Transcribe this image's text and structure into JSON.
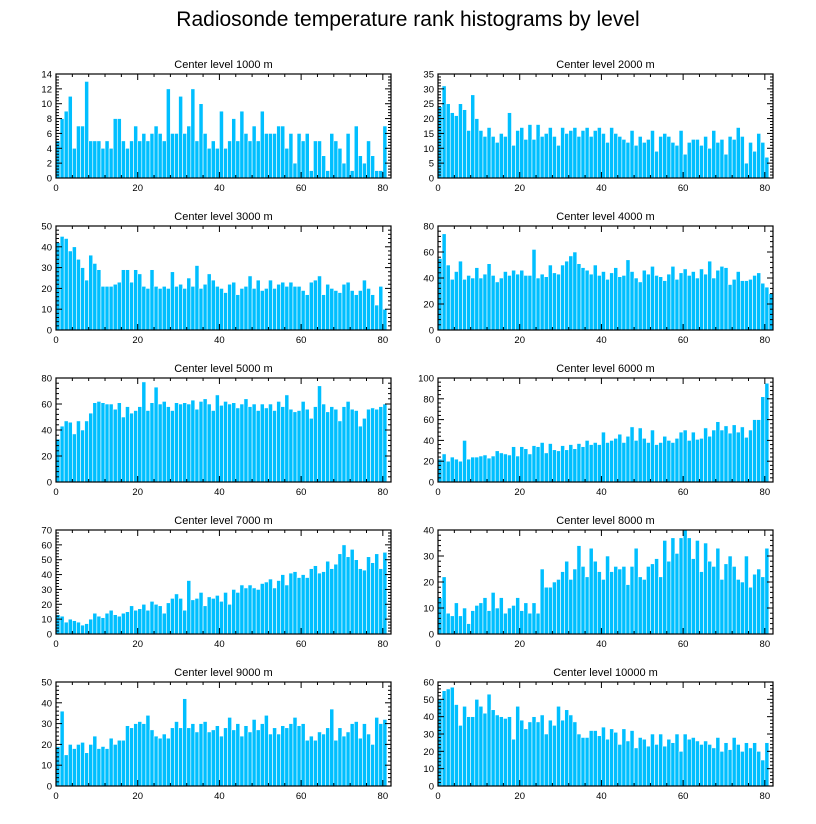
{
  "title": "Radiosonde temperature rank histograms by level",
  "chart_data": [
    {
      "type": "bar",
      "title": "Center level 1000 m",
      "xlim": [
        0,
        82
      ],
      "ylim": [
        0,
        14
      ],
      "xticks": [
        0,
        20,
        40,
        60,
        80
      ],
      "yticks": [
        0,
        2,
        4,
        6,
        8,
        10,
        12,
        14
      ],
      "values": [
        5,
        8,
        9,
        11,
        4,
        7,
        7,
        13,
        5,
        5,
        5,
        4,
        5,
        4,
        8,
        8,
        5,
        4,
        5,
        7,
        5,
        6,
        5,
        6,
        7,
        6,
        5,
        12,
        6,
        6,
        11,
        6,
        7,
        12,
        5,
        10,
        6,
        4,
        5,
        4,
        9,
        4,
        5,
        8,
        5,
        9,
        6,
        5,
        7,
        5,
        9,
        6,
        6,
        6,
        7,
        7,
        4,
        6,
        2,
        6,
        5,
        6,
        1,
        5,
        5,
        3,
        1,
        6,
        5,
        4,
        2,
        6,
        1,
        7,
        3,
        2,
        5,
        3,
        1,
        1,
        7
      ]
    },
    {
      "type": "bar",
      "title": "Center level 2000 m",
      "xlim": [
        0,
        82
      ],
      "ylim": [
        0,
        35
      ],
      "xticks": [
        0,
        20,
        40,
        60,
        80
      ],
      "yticks": [
        0,
        5,
        10,
        15,
        20,
        25,
        30,
        35
      ],
      "values": [
        24,
        31,
        25,
        22,
        21,
        25,
        23,
        16,
        28,
        20,
        16,
        14,
        17,
        14,
        12,
        15,
        14,
        22,
        11,
        16,
        17,
        13,
        18,
        13,
        18,
        14,
        15,
        17,
        14,
        11,
        17,
        15,
        16,
        17,
        14,
        16,
        17,
        14,
        16,
        17,
        15,
        12,
        17,
        15,
        14,
        13,
        12,
        16,
        11,
        14,
        12,
        13,
        16,
        9,
        14,
        15,
        14,
        12,
        11,
        16,
        8,
        12,
        13,
        13,
        11,
        14,
        10,
        16,
        12,
        13,
        8,
        14,
        13,
        17,
        14,
        5,
        12,
        9,
        15,
        12,
        7
      ]
    },
    {
      "type": "bar",
      "title": "Center level 3000 m",
      "xlim": [
        0,
        82
      ],
      "ylim": [
        0,
        50
      ],
      "xticks": [
        0,
        20,
        40,
        60,
        80
      ],
      "yticks": [
        0,
        10,
        20,
        30,
        40,
        50
      ],
      "values": [
        42,
        45,
        44,
        38,
        40,
        34,
        30,
        24,
        36,
        32,
        29,
        21,
        21,
        21,
        22,
        23,
        29,
        29,
        23,
        29,
        27,
        21,
        20,
        29,
        21,
        20,
        21,
        20,
        28,
        21,
        22,
        20,
        25,
        21,
        31,
        20,
        22,
        27,
        24,
        21,
        20,
        18,
        22,
        23,
        17,
        20,
        21,
        26,
        20,
        24,
        19,
        20,
        24,
        20,
        22,
        23,
        21,
        23,
        21,
        21,
        19,
        17,
        23,
        24,
        26,
        17,
        22,
        20,
        19,
        18,
        22,
        23,
        19,
        17,
        19,
        24,
        20,
        17,
        12,
        21,
        10
      ]
    },
    {
      "type": "bar",
      "title": "Center level 4000 m",
      "xlim": [
        0,
        82
      ],
      "ylim": [
        0,
        80
      ],
      "xticks": [
        0,
        20,
        40,
        60,
        80
      ],
      "yticks": [
        0,
        20,
        40,
        60,
        80
      ],
      "values": [
        55,
        74,
        50,
        39,
        45,
        53,
        39,
        42,
        40,
        48,
        40,
        43,
        51,
        42,
        37,
        40,
        45,
        42,
        46,
        43,
        46,
        42,
        42,
        62,
        40,
        43,
        41,
        50,
        44,
        43,
        50,
        53,
        57,
        60,
        51,
        48,
        46,
        43,
        50,
        42,
        45,
        39,
        44,
        48,
        41,
        42,
        54,
        45,
        40,
        37,
        46,
        43,
        49,
        42,
        41,
        38,
        43,
        49,
        39,
        44,
        47,
        42,
        45,
        40,
        47,
        43,
        53,
        40,
        46,
        49,
        48,
        35,
        39,
        45,
        38,
        38,
        39,
        42,
        44,
        36,
        33,
        28
      ]
    },
    {
      "type": "bar",
      "title": "Center level 5000 m",
      "xlim": [
        0,
        82
      ],
      "ylim": [
        0,
        80
      ],
      "xticks": [
        0,
        20,
        40,
        60,
        80
      ],
      "yticks": [
        0,
        20,
        40,
        60,
        80
      ],
      "values": [
        33,
        43,
        47,
        46,
        37,
        47,
        40,
        47,
        53,
        61,
        62,
        61,
        60,
        60,
        56,
        61,
        50,
        58,
        53,
        55,
        58,
        77,
        55,
        61,
        73,
        60,
        62,
        58,
        55,
        61,
        60,
        61,
        60,
        63,
        56,
        62,
        64,
        60,
        55,
        67,
        59,
        62,
        60,
        61,
        57,
        60,
        64,
        58,
        60,
        55,
        60,
        57,
        60,
        55,
        62,
        58,
        67,
        56,
        54,
        55,
        62,
        56,
        49,
        58,
        74,
        60,
        54,
        58,
        56,
        47,
        58,
        62,
        56,
        55,
        43,
        49,
        56,
        57,
        56,
        58,
        60
      ]
    },
    {
      "type": "bar",
      "title": "Center level 6000 m",
      "xlim": [
        0,
        82
      ],
      "ylim": [
        0,
        100
      ],
      "xticks": [
        0,
        20,
        40,
        60,
        80
      ],
      "yticks": [
        0,
        20,
        40,
        60,
        80,
        100
      ],
      "values": [
        22,
        27,
        20,
        24,
        22,
        20,
        40,
        22,
        24,
        24,
        25,
        26,
        23,
        25,
        30,
        28,
        27,
        26,
        34,
        25,
        34,
        32,
        27,
        35,
        34,
        38,
        28,
        37,
        31,
        30,
        35,
        31,
        36,
        32,
        37,
        34,
        40,
        36,
        38,
        36,
        48,
        38,
        40,
        42,
        46,
        38,
        44,
        53,
        40,
        52,
        42,
        38,
        50,
        36,
        38,
        44,
        40,
        38,
        42,
        48,
        50,
        40,
        48,
        41,
        42,
        52,
        44,
        50,
        58,
        50,
        54,
        47,
        55,
        48,
        53,
        43,
        50,
        60,
        60,
        82,
        95
      ]
    },
    {
      "type": "bar",
      "title": "Center level 7000 m",
      "xlim": [
        0,
        82
      ],
      "ylim": [
        0,
        70
      ],
      "xticks": [
        0,
        20,
        40,
        60,
        80
      ],
      "yticks": [
        0,
        10,
        20,
        30,
        40,
        50,
        60,
        70
      ],
      "values": [
        13,
        12,
        8,
        10,
        9,
        8,
        6,
        7,
        10,
        14,
        12,
        11,
        14,
        16,
        13,
        12,
        14,
        15,
        19,
        16,
        17,
        20,
        16,
        22,
        20,
        19,
        14,
        21,
        24,
        27,
        24,
        16,
        36,
        23,
        24,
        28,
        19,
        25,
        24,
        26,
        22,
        28,
        20,
        30,
        28,
        33,
        31,
        33,
        31,
        30,
        34,
        35,
        37,
        31,
        36,
        40,
        33,
        41,
        42,
        38,
        40,
        38,
        44,
        46,
        41,
        42,
        49,
        44,
        47,
        54,
        60,
        52,
        57,
        50,
        44,
        43,
        52,
        48,
        54,
        44,
        55
      ]
    },
    {
      "type": "bar",
      "title": "Center level 8000 m",
      "xlim": [
        0,
        82
      ],
      "ylim": [
        0,
        40
      ],
      "xticks": [
        0,
        20,
        40,
        60,
        80
      ],
      "yticks": [
        0,
        10,
        20,
        30,
        40
      ],
      "values": [
        14,
        22,
        8,
        7,
        12,
        7,
        10,
        4,
        9,
        11,
        12,
        14,
        9,
        16,
        10,
        14,
        8,
        10,
        11,
        14,
        9,
        12,
        8,
        12,
        8,
        25,
        18,
        18,
        20,
        21,
        24,
        28,
        21,
        25,
        34,
        26,
        22,
        33,
        28,
        24,
        21,
        30,
        24,
        26,
        25,
        26,
        19,
        26,
        33,
        22,
        21,
        26,
        27,
        29,
        22,
        36,
        28,
        37,
        31,
        37,
        40,
        37,
        29,
        36,
        24,
        35,
        28,
        26,
        33,
        21,
        27,
        30,
        26,
        21,
        20,
        30,
        18,
        23,
        25,
        22,
        33
      ]
    },
    {
      "type": "bar",
      "title": "Center level 9000 m",
      "xlim": [
        0,
        82
      ],
      "ylim": [
        0,
        50
      ],
      "xticks": [
        0,
        20,
        40,
        60,
        80
      ],
      "yticks": [
        0,
        10,
        20,
        30,
        40,
        50
      ],
      "values": [
        19,
        36,
        15,
        20,
        18,
        20,
        21,
        16,
        20,
        24,
        18,
        19,
        18,
        23,
        20,
        22,
        22,
        29,
        28,
        30,
        31,
        30,
        34,
        27,
        24,
        23,
        25,
        23,
        28,
        31,
        28,
        42,
        28,
        30,
        26,
        30,
        31,
        26,
        27,
        29,
        24,
        28,
        33,
        27,
        30,
        24,
        29,
        26,
        32,
        27,
        30,
        34,
        25,
        28,
        25,
        29,
        28,
        30,
        33,
        29,
        30,
        22,
        24,
        22,
        26,
        25,
        28,
        37,
        22,
        28,
        24,
        26,
        30,
        31,
        23,
        30,
        25,
        20,
        33,
        30,
        32
      ]
    },
    {
      "type": "bar",
      "title": "Center level 10000 m",
      "xlim": [
        0,
        82
      ],
      "ylim": [
        0,
        60
      ],
      "xticks": [
        0,
        20,
        40,
        60,
        80
      ],
      "yticks": [
        0,
        10,
        20,
        30,
        40,
        50,
        60
      ],
      "values": [
        50,
        55,
        56,
        57,
        47,
        35,
        46,
        40,
        40,
        50,
        46,
        42,
        53,
        44,
        41,
        40,
        39,
        40,
        27,
        46,
        38,
        33,
        37,
        40,
        37,
        41,
        30,
        38,
        35,
        46,
        38,
        44,
        41,
        37,
        30,
        28,
        28,
        32,
        32,
        29,
        34,
        27,
        33,
        31,
        24,
        33,
        26,
        32,
        22,
        28,
        27,
        23,
        30,
        24,
        30,
        23,
        27,
        25,
        30,
        20,
        30,
        27,
        28,
        26,
        24,
        26,
        24,
        22,
        28,
        20,
        25,
        21,
        28,
        24,
        20,
        25,
        22,
        25,
        20,
        15,
        25
      ]
    }
  ]
}
